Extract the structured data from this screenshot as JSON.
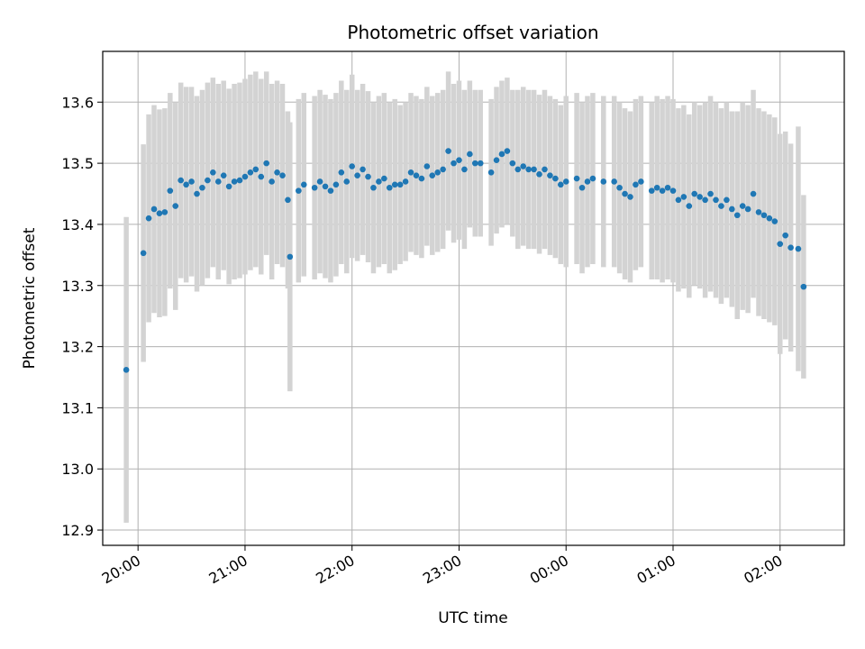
{
  "chart_data": {
    "type": "scatter",
    "title": "Photometric offset variation",
    "xlabel": "UTC time",
    "ylabel": "Photometric offset",
    "x_unit": "hours (UTC, continuous past midnight)",
    "xlim": [
      19.67,
      26.6
    ],
    "ylim": [
      12.875,
      13.683
    ],
    "grid": true,
    "colors": {
      "point": "#1f77b4",
      "errorbar": "#d3d3d3",
      "grid": "#b0b0b0"
    },
    "x_ticks": [
      {
        "value": 20,
        "label": "20:00"
      },
      {
        "value": 21,
        "label": "21:00"
      },
      {
        "value": 22,
        "label": "22:00"
      },
      {
        "value": 23,
        "label": "23:00"
      },
      {
        "value": 24,
        "label": "00:00"
      },
      {
        "value": 25,
        "label": "01:00"
      },
      {
        "value": 26,
        "label": "02:00"
      }
    ],
    "y_ticks": [
      {
        "value": 12.9,
        "label": "12.9"
      },
      {
        "value": 13.0,
        "label": "13.0"
      },
      {
        "value": 13.1,
        "label": "13.1"
      },
      {
        "value": 13.2,
        "label": "13.2"
      },
      {
        "value": 13.3,
        "label": "13.3"
      },
      {
        "value": 13.4,
        "label": "13.4"
      },
      {
        "value": 13.5,
        "label": "13.5"
      },
      {
        "value": 13.6,
        "label": "13.6"
      }
    ],
    "series": [
      {
        "points": [
          [
            19.89,
            13.162,
            0.25
          ],
          [
            20.05,
            13.353,
            0.178
          ],
          [
            20.1,
            13.41,
            0.17
          ],
          [
            20.15,
            13.425,
            0.17
          ],
          [
            20.2,
            13.418,
            0.17
          ],
          [
            20.25,
            13.42,
            0.17
          ],
          [
            20.3,
            13.455,
            0.16
          ],
          [
            20.35,
            13.43,
            0.17
          ],
          [
            20.4,
            13.472,
            0.16
          ],
          [
            20.45,
            13.465,
            0.16
          ],
          [
            20.5,
            13.47,
            0.155
          ],
          [
            20.55,
            13.45,
            0.16
          ],
          [
            20.6,
            13.46,
            0.16
          ],
          [
            20.65,
            13.472,
            0.16
          ],
          [
            20.7,
            13.485,
            0.155
          ],
          [
            20.75,
            13.47,
            0.16
          ],
          [
            20.8,
            13.48,
            0.155
          ],
          [
            20.85,
            13.462,
            0.16
          ],
          [
            20.9,
            13.47,
            0.16
          ],
          [
            20.95,
            13.472,
            0.16
          ],
          [
            21.0,
            13.478,
            0.16
          ],
          [
            21.05,
            13.485,
            0.16
          ],
          [
            21.1,
            13.49,
            0.16
          ],
          [
            21.15,
            13.478,
            0.16
          ],
          [
            21.2,
            13.5,
            0.15
          ],
          [
            21.25,
            13.47,
            0.16
          ],
          [
            21.3,
            13.485,
            0.15
          ],
          [
            21.35,
            13.48,
            0.15
          ],
          [
            21.4,
            13.44,
            0.145
          ],
          [
            21.42,
            13.347,
            0.22
          ],
          [
            21.5,
            13.455,
            0.15
          ],
          [
            21.55,
            13.465,
            0.15
          ],
          [
            21.65,
            13.46,
            0.15
          ],
          [
            21.7,
            13.47,
            0.15
          ],
          [
            21.75,
            13.462,
            0.15
          ],
          [
            21.8,
            13.455,
            0.15
          ],
          [
            21.85,
            13.465,
            0.15
          ],
          [
            21.9,
            13.485,
            0.15
          ],
          [
            21.95,
            13.47,
            0.15
          ],
          [
            22.0,
            13.495,
            0.15
          ],
          [
            22.05,
            13.48,
            0.14
          ],
          [
            22.1,
            13.49,
            0.14
          ],
          [
            22.15,
            13.478,
            0.14
          ],
          [
            22.2,
            13.46,
            0.14
          ],
          [
            22.25,
            13.47,
            0.14
          ],
          [
            22.3,
            13.475,
            0.14
          ],
          [
            22.35,
            13.46,
            0.14
          ],
          [
            22.4,
            13.465,
            0.14
          ],
          [
            22.45,
            13.465,
            0.13
          ],
          [
            22.5,
            13.47,
            0.13
          ],
          [
            22.55,
            13.485,
            0.13
          ],
          [
            22.6,
            13.48,
            0.13
          ],
          [
            22.65,
            13.475,
            0.13
          ],
          [
            22.7,
            13.495,
            0.13
          ],
          [
            22.75,
            13.48,
            0.13
          ],
          [
            22.8,
            13.485,
            0.13
          ],
          [
            22.85,
            13.49,
            0.13
          ],
          [
            22.9,
            13.52,
            0.13
          ],
          [
            22.95,
            13.5,
            0.13
          ],
          [
            23.0,
            13.505,
            0.13
          ],
          [
            23.05,
            13.49,
            0.13
          ],
          [
            23.1,
            13.515,
            0.12
          ],
          [
            23.15,
            13.5,
            0.12
          ],
          [
            23.2,
            13.5,
            0.12
          ],
          [
            23.3,
            13.485,
            0.12
          ],
          [
            23.35,
            13.505,
            0.12
          ],
          [
            23.4,
            13.515,
            0.12
          ],
          [
            23.45,
            13.52,
            0.12
          ],
          [
            23.5,
            13.5,
            0.12
          ],
          [
            23.55,
            13.49,
            0.13
          ],
          [
            23.6,
            13.495,
            0.13
          ],
          [
            23.65,
            13.49,
            0.13
          ],
          [
            23.7,
            13.49,
            0.13
          ],
          [
            23.75,
            13.482,
            0.13
          ],
          [
            23.8,
            13.49,
            0.13
          ],
          [
            23.85,
            13.48,
            0.13
          ],
          [
            23.9,
            13.475,
            0.13
          ],
          [
            23.95,
            13.465,
            0.13
          ],
          [
            24.0,
            13.47,
            0.14
          ],
          [
            24.1,
            13.475,
            0.14
          ],
          [
            24.15,
            13.46,
            0.14
          ],
          [
            24.2,
            13.47,
            0.14
          ],
          [
            24.25,
            13.475,
            0.14
          ],
          [
            24.35,
            13.47,
            0.14
          ],
          [
            24.45,
            13.47,
            0.14
          ],
          [
            24.5,
            13.46,
            0.14
          ],
          [
            24.55,
            13.45,
            0.14
          ],
          [
            24.6,
            13.445,
            0.14
          ],
          [
            24.65,
            13.465,
            0.14
          ],
          [
            24.7,
            13.47,
            0.14
          ],
          [
            24.8,
            13.455,
            0.145
          ],
          [
            24.85,
            13.46,
            0.15
          ],
          [
            24.9,
            13.455,
            0.15
          ],
          [
            24.95,
            13.46,
            0.15
          ],
          [
            25.0,
            13.455,
            0.15
          ],
          [
            25.05,
            13.44,
            0.15
          ],
          [
            25.1,
            13.445,
            0.15
          ],
          [
            25.15,
            13.43,
            0.15
          ],
          [
            25.2,
            13.45,
            0.15
          ],
          [
            25.25,
            13.445,
            0.15
          ],
          [
            25.3,
            13.44,
            0.16
          ],
          [
            25.35,
            13.45,
            0.16
          ],
          [
            25.4,
            13.44,
            0.16
          ],
          [
            25.45,
            13.43,
            0.16
          ],
          [
            25.5,
            13.44,
            0.16
          ],
          [
            25.55,
            13.425,
            0.16
          ],
          [
            25.6,
            13.415,
            0.17
          ],
          [
            25.65,
            13.43,
            0.17
          ],
          [
            25.7,
            13.425,
            0.17
          ],
          [
            25.75,
            13.45,
            0.17
          ],
          [
            25.8,
            13.42,
            0.17
          ],
          [
            25.85,
            13.415,
            0.17
          ],
          [
            25.9,
            13.41,
            0.17
          ],
          [
            25.95,
            13.405,
            0.17
          ],
          [
            26.0,
            13.368,
            0.18
          ],
          [
            26.05,
            13.382,
            0.17
          ],
          [
            26.1,
            13.362,
            0.17
          ],
          [
            26.17,
            13.36,
            0.2
          ],
          [
            26.22,
            13.298,
            0.15
          ]
        ]
      }
    ]
  }
}
